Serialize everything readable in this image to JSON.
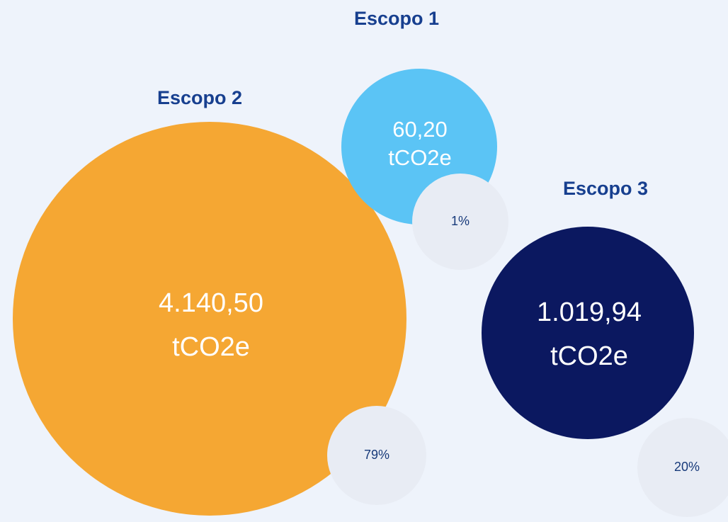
{
  "nodes": [
    {
      "label": "Escopo 1",
      "value": "60,20",
      "unit": "tCO2e",
      "share": "1%"
    },
    {
      "label": "Escopo 2",
      "value": "4.140,50",
      "unit": "tCO2e",
      "share": "79%"
    },
    {
      "label": "Escopo 3",
      "value": "1.019,94",
      "unit": "tCO2e",
      "share": "20%"
    }
  ]
}
